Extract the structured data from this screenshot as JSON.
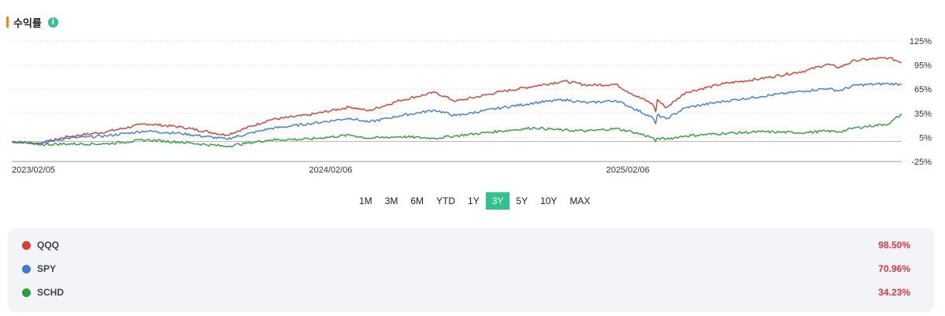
{
  "header": {
    "title": "수익률",
    "info_icon": "info-icon"
  },
  "colors": {
    "accent": "#f08a00",
    "qqq": "#e03a2f",
    "spy": "#3b7ddd",
    "schd": "#2e9e3e",
    "active": "#2fc48d",
    "value": "#e5343d"
  },
  "ranges": [
    "1M",
    "3M",
    "6M",
    "YTD",
    "1Y",
    "3Y",
    "5Y",
    "10Y",
    "MAX"
  ],
  "active_range": "3Y",
  "chart_data": {
    "type": "line",
    "title": "",
    "y_ticks": [
      "125%",
      "95%",
      "65%",
      "35%",
      "5%",
      "-25%"
    ],
    "y_tick_values": [
      125,
      95,
      65,
      35,
      5,
      -25
    ],
    "ylim": [
      -25,
      125
    ],
    "x_ticks": [
      "2023/02/05",
      "2024/02/06",
      "2025/02/06"
    ],
    "x_range": [
      "2023/02/05",
      "2026/02/05"
    ],
    "baseline": 0,
    "grid": true,
    "series": [
      {
        "name": "QQQ",
        "color": "#e03a2f",
        "points": [
          [
            "2023/02/05",
            0
          ],
          [
            "2023/03/10",
            -3
          ],
          [
            "2023/04/15",
            6
          ],
          [
            "2023/06/01",
            12
          ],
          [
            "2023/07/20",
            22
          ],
          [
            "2023/09/01",
            18
          ],
          [
            "2023/10/27",
            8
          ],
          [
            "2023/12/20",
            27
          ],
          [
            "2024/02/06",
            33
          ],
          [
            "2024/03/28",
            43
          ],
          [
            "2024/04/19",
            38
          ],
          [
            "2024/05/28",
            51
          ],
          [
            "2024/07/10",
            61
          ],
          [
            "2024/08/05",
            50
          ],
          [
            "2024/09/30",
            62
          ],
          [
            "2024/11/10",
            69
          ],
          [
            "2024/12/16",
            75
          ],
          [
            "2025/01/15",
            70
          ],
          [
            "2025/02/18",
            71
          ],
          [
            "2025/03/10",
            59
          ],
          [
            "2025/04/04",
            47
          ],
          [
            "2025/04/08",
            37
          ],
          [
            "2025/04/10",
            52
          ],
          [
            "2025/04/21",
            42
          ],
          [
            "2025/05/15",
            61
          ],
          [
            "2025/07/01",
            72
          ],
          [
            "2025/08/15",
            78
          ],
          [
            "2025/10/10",
            88
          ],
          [
            "2025/11/05",
            96
          ],
          [
            "2025/11/20",
            92
          ],
          [
            "2025/12/10",
            101
          ],
          [
            "2026/01/20",
            104
          ],
          [
            "2026/02/05",
            98.5
          ]
        ]
      },
      {
        "name": "SPY",
        "color": "#3b7ddd",
        "points": [
          [
            "2023/02/05",
            0
          ],
          [
            "2023/03/10",
            -2
          ],
          [
            "2023/04/15",
            4
          ],
          [
            "2023/06/01",
            7
          ],
          [
            "2023/07/20",
            13
          ],
          [
            "2023/09/01",
            10
          ],
          [
            "2023/10/27",
            3
          ],
          [
            "2023/12/20",
            16
          ],
          [
            "2024/02/06",
            22
          ],
          [
            "2024/03/28",
            29
          ],
          [
            "2024/04/19",
            24
          ],
          [
            "2024/05/28",
            32
          ],
          [
            "2024/07/10",
            39
          ],
          [
            "2024/08/05",
            32
          ],
          [
            "2024/09/30",
            42
          ],
          [
            "2024/11/10",
            48
          ],
          [
            "2024/12/16",
            52
          ],
          [
            "2025/01/15",
            48
          ],
          [
            "2025/02/18",
            51
          ],
          [
            "2025/03/10",
            42
          ],
          [
            "2025/04/04",
            30
          ],
          [
            "2025/04/08",
            22
          ],
          [
            "2025/04/10",
            33
          ],
          [
            "2025/04/21",
            28
          ],
          [
            "2025/05/15",
            42
          ],
          [
            "2025/07/01",
            50
          ],
          [
            "2025/08/15",
            56
          ],
          [
            "2025/10/10",
            63
          ],
          [
            "2025/11/05",
            66
          ],
          [
            "2025/11/20",
            63
          ],
          [
            "2025/12/10",
            70
          ],
          [
            "2026/01/20",
            72
          ],
          [
            "2026/02/05",
            70.96
          ]
        ]
      },
      {
        "name": "SCHD",
        "color": "#2e9e3e",
        "points": [
          [
            "2023/02/05",
            0
          ],
          [
            "2023/03/10",
            -4
          ],
          [
            "2023/04/15",
            -3
          ],
          [
            "2023/06/01",
            -3
          ],
          [
            "2023/07/20",
            2
          ],
          [
            "2023/09/01",
            -1
          ],
          [
            "2023/10/27",
            -6
          ],
          [
            "2023/12/20",
            2
          ],
          [
            "2024/02/06",
            3
          ],
          [
            "2024/03/28",
            8
          ],
          [
            "2024/04/19",
            4
          ],
          [
            "2024/05/28",
            6
          ],
          [
            "2024/07/10",
            4
          ],
          [
            "2024/08/05",
            7
          ],
          [
            "2024/09/30",
            13
          ],
          [
            "2024/11/10",
            17
          ],
          [
            "2024/12/16",
            14
          ],
          [
            "2025/01/15",
            13
          ],
          [
            "2025/02/18",
            16
          ],
          [
            "2025/03/10",
            12
          ],
          [
            "2025/04/04",
            5
          ],
          [
            "2025/04/08",
            0
          ],
          [
            "2025/04/10",
            4
          ],
          [
            "2025/04/21",
            3
          ],
          [
            "2025/05/15",
            7
          ],
          [
            "2025/07/01",
            10
          ],
          [
            "2025/08/15",
            12
          ],
          [
            "2025/10/10",
            11
          ],
          [
            "2025/11/05",
            13
          ],
          [
            "2025/11/20",
            12
          ],
          [
            "2025/12/10",
            17
          ],
          [
            "2026/01/20",
            22
          ],
          [
            "2026/02/05",
            34.23
          ]
        ]
      }
    ]
  },
  "legend": [
    {
      "name": "QQQ",
      "value": "98.50%",
      "color": "#e03a2f"
    },
    {
      "name": "SPY",
      "value": "70.96%",
      "color": "#3b7ddd"
    },
    {
      "name": "SCHD",
      "value": "34.23%",
      "color": "#2e9e3e"
    }
  ]
}
